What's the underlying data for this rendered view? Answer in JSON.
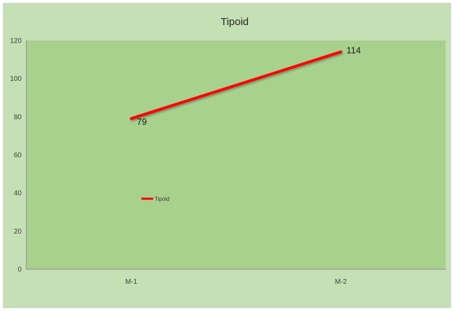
{
  "chart_data": {
    "type": "line",
    "title": "Tipoid",
    "categories": [
      "M-1",
      "M-2"
    ],
    "series": [
      {
        "name": "Tipoid",
        "values": [
          79,
          114
        ]
      }
    ],
    "ylim": [
      0,
      120
    ],
    "yticks": [
      0,
      20,
      40,
      60,
      80,
      100,
      120
    ],
    "data_labels": [
      "79",
      "114"
    ],
    "legend_position": "inside-plot-left",
    "grid": false,
    "colors": {
      "series": "#ff0000",
      "plot_area": "#a9d18e",
      "chart_area": "#c5e0b4"
    }
  }
}
